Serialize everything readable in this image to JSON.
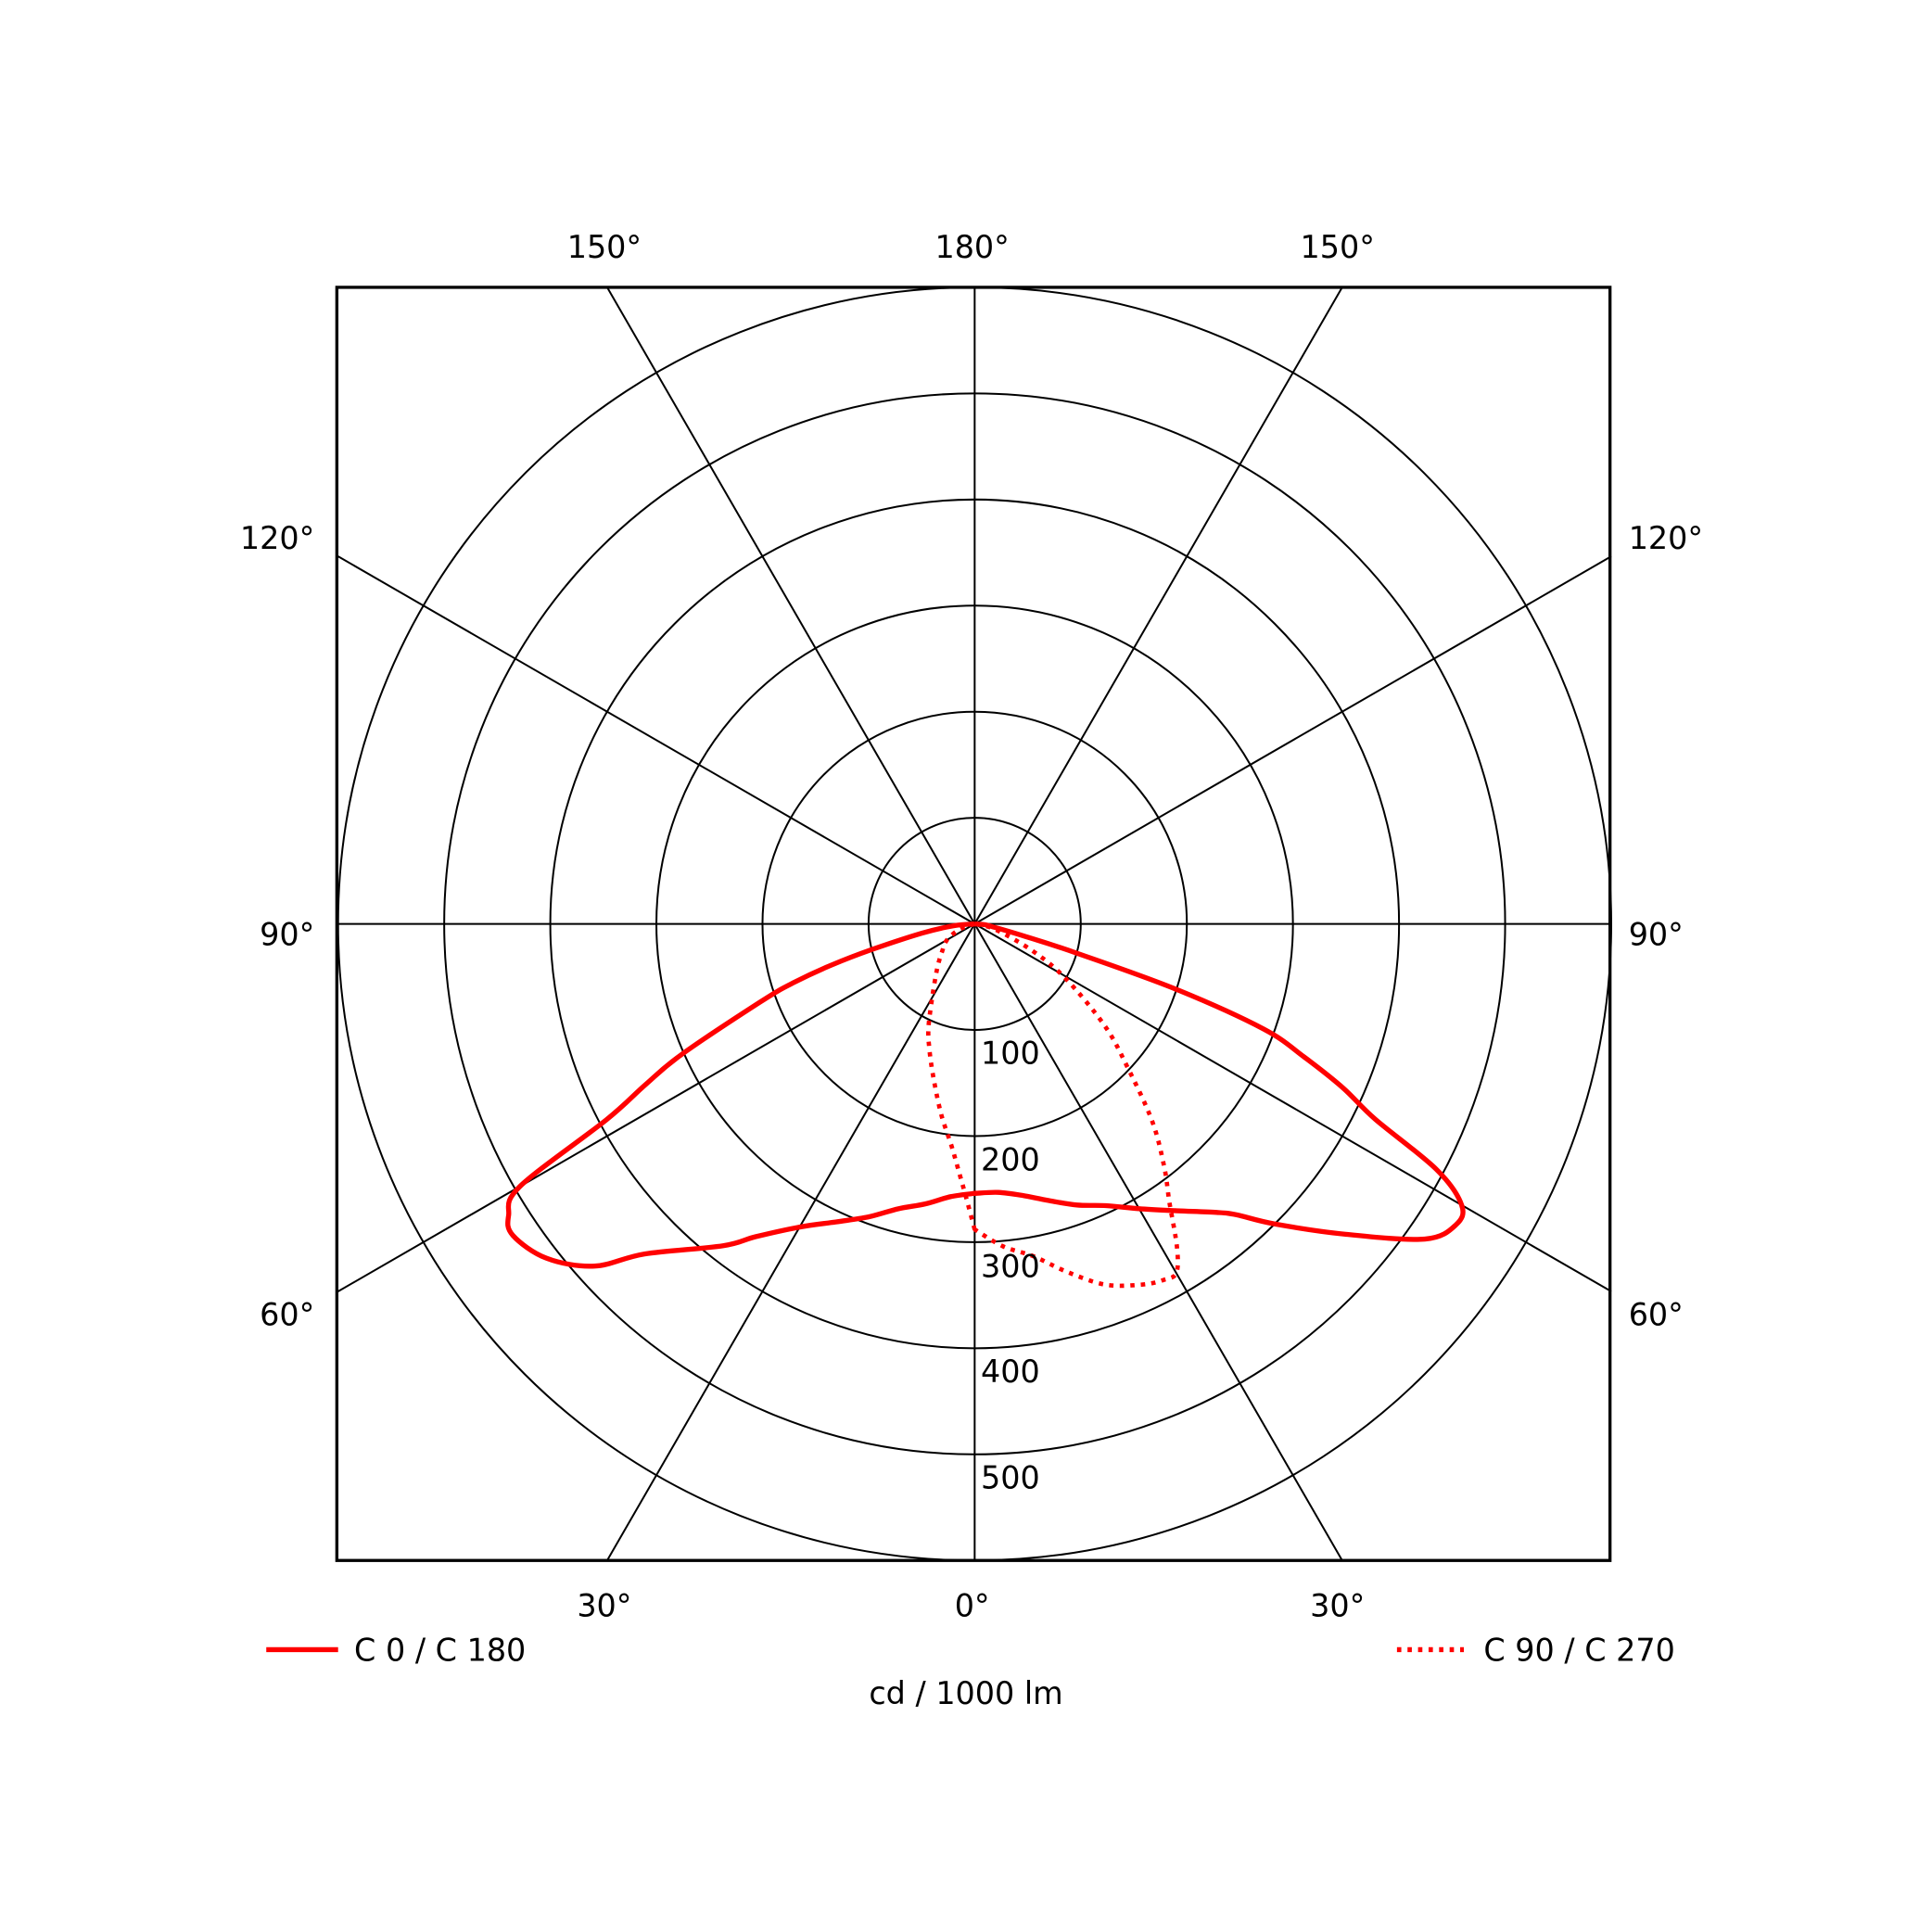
{
  "chart_data": {
    "type": "polar",
    "unit_label": "cd / 1000 lm",
    "radial_max": 600,
    "radial_ticks": [
      100,
      200,
      300,
      400,
      500
    ],
    "radial_tick_labels": [
      "100",
      "200",
      "300",
      "400",
      "500"
    ],
    "angle_labels": {
      "top": [
        "150°",
        "180°",
        "150°"
      ],
      "left": [
        "120°",
        "90°",
        "60°"
      ],
      "right": [
        "120°",
        "90°",
        "60°"
      ],
      "bottom": [
        "30°",
        "0°",
        "30°"
      ]
    },
    "grid": true,
    "series": [
      {
        "name": "C 0 / C 180",
        "style": "solid",
        "color": "#ff0000",
        "left_angles": [
          0,
          5,
          10,
          15,
          20,
          25,
          30,
          35,
          38,
          45,
          48,
          52,
          56,
          58,
          60,
          62,
          64,
          66,
          70,
          72,
          74,
          76,
          80,
          85,
          90
        ],
        "left_values": [
          254,
          258,
          268,
          278,
          294,
          310,
          330,
          360,
          385,
          440,
          482,
          512,
          525,
          518,
          495,
          393,
          345,
          302,
          215,
          180,
          140,
          100,
          50,
          20,
          0
        ],
        "right_angles": [
          0,
          5,
          10,
          15,
          20,
          25,
          30,
          35,
          40,
          42,
          45,
          50,
          55,
          58,
          60,
          62,
          64,
          66,
          68,
          70,
          72,
          74,
          76,
          80,
          85,
          90
        ],
        "right_values": [
          254,
          254,
          260,
          270,
          282,
          293,
          310,
          330,
          355,
          369,
          400,
          455,
          518,
          535,
          530,
          493,
          420,
          380,
          335,
          290,
          200,
          100,
          50,
          20,
          10,
          0
        ]
      },
      {
        "name": "C 90 / C 270",
        "style": "dotted",
        "color": "#ff0000",
        "left_angles": [
          0,
          2,
          4,
          6,
          10,
          15,
          20,
          24,
          30,
          40,
          50,
          60,
          70,
          90
        ],
        "left_values": [
          288,
          255,
          230,
          210,
          182,
          150,
          125,
          107,
          80,
          55,
          40,
          30,
          15,
          0
        ],
        "right_angles": [
          0,
          5,
          10,
          15,
          20,
          25,
          28,
          30,
          32,
          35,
          38,
          42,
          47,
          52,
          59,
          65,
          75,
          90
        ],
        "right_values": [
          288,
          305,
          318,
          340,
          362,
          375,
          380,
          380,
          360,
          320,
          290,
          250,
          196,
          155,
          100,
          60,
          20,
          0
        ]
      }
    ]
  }
}
